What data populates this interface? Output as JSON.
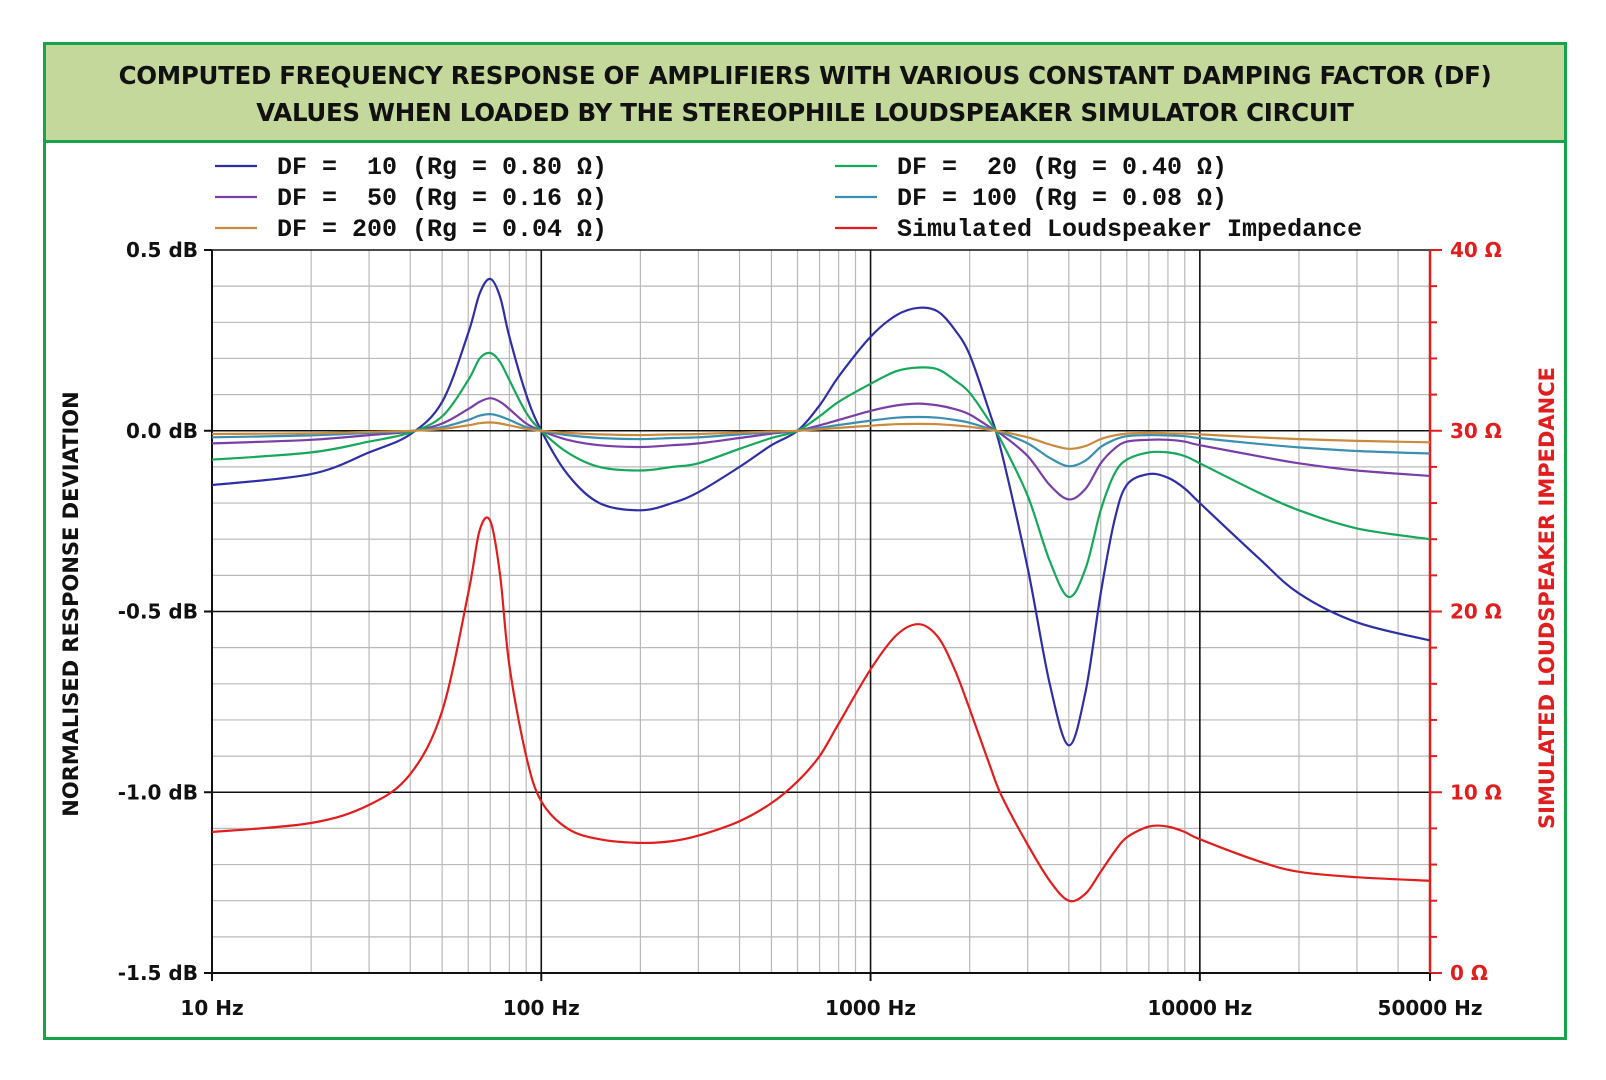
{
  "title": {
    "line1": "COMPUTED FREQUENCY RESPONSE OF AMPLIFIERS WITH VARIOUS CONSTANT DAMPING FACTOR (DF)",
    "line2": "VALUES WHEN LOADED BY THE STEREOPHILE LOUDSPEAKER SIMULATOR CIRCUIT"
  },
  "colors": {
    "frame": "#17a34a",
    "title_band": "#c4d89c",
    "impedance_axis": "#e11d1d"
  },
  "chart_data": {
    "type": "line",
    "x_scale": "log",
    "xlim": [
      10,
      50000
    ],
    "x_ticks": [
      10,
      100,
      1000,
      10000,
      50000
    ],
    "x_tick_labels": [
      "10 Hz",
      "100 Hz",
      "1000 Hz",
      "10000 Hz",
      "50000 Hz"
    ],
    "ylabel": "NORMALISED RESPONSE DEVIATION",
    "ylim": [
      -1.5,
      0.5
    ],
    "y_ticks": [
      0.5,
      0.0,
      -0.5,
      -1.0,
      -1.5
    ],
    "y_tick_labels": [
      "0.5 dB",
      "0.0 dB",
      "-0.5 dB",
      "-1.0 dB",
      "-1.5 dB"
    ],
    "y2label": "SIMULATED LOUDSPEAKER IMPEDANCE",
    "y2lim": [
      0,
      40
    ],
    "y2_ticks": [
      40,
      30,
      20,
      10,
      0
    ],
    "y2_tick_labels": [
      "40 Ω",
      "30 Ω",
      "20 Ω",
      "10 Ω",
      "0 Ω"
    ],
    "grid": true,
    "legend_position": "top",
    "series": [
      {
        "name": "DF =  10 (Rg = 0.80 Ω)",
        "color": "#2e2ea6",
        "axis": "left",
        "x": [
          10,
          20,
          30,
          40,
          50,
          60,
          65,
          70,
          75,
          80,
          90,
          100,
          120,
          150,
          200,
          250,
          300,
          400,
          500,
          600,
          700,
          800,
          1000,
          1200,
          1400,
          1600,
          1800,
          2000,
          2300,
          2500,
          3000,
          3500,
          4000,
          4500,
          5000,
          5500,
          6000,
          7000,
          8000,
          9000,
          10000,
          15000,
          20000,
          30000,
          50000
        ],
        "y": [
          -0.15,
          -0.12,
          -0.06,
          -0.01,
          0.08,
          0.27,
          0.38,
          0.42,
          0.37,
          0.26,
          0.1,
          0.0,
          -0.12,
          -0.2,
          -0.22,
          -0.2,
          -0.17,
          -0.1,
          -0.04,
          0.0,
          0.07,
          0.15,
          0.26,
          0.32,
          0.34,
          0.33,
          0.28,
          0.21,
          0.05,
          -0.06,
          -0.38,
          -0.7,
          -0.87,
          -0.72,
          -0.45,
          -0.25,
          -0.15,
          -0.12,
          -0.13,
          -0.16,
          -0.2,
          -0.35,
          -0.45,
          -0.53,
          -0.58
        ]
      },
      {
        "name": "DF =  20 (Rg = 0.40 Ω)",
        "color": "#16a85a",
        "axis": "left",
        "x": [
          10,
          20,
          30,
          40,
          50,
          60,
          65,
          70,
          75,
          80,
          90,
          100,
          120,
          150,
          200,
          250,
          300,
          400,
          500,
          600,
          700,
          800,
          1000,
          1200,
          1400,
          1600,
          1800,
          2000,
          2300,
          2500,
          3000,
          3500,
          4000,
          4500,
          5000,
          5500,
          6000,
          7000,
          8000,
          9000,
          10000,
          15000,
          20000,
          30000,
          50000
        ],
        "y": [
          -0.08,
          -0.06,
          -0.03,
          -0.005,
          0.04,
          0.14,
          0.2,
          0.215,
          0.19,
          0.14,
          0.05,
          0.0,
          -0.06,
          -0.1,
          -0.11,
          -0.1,
          -0.09,
          -0.05,
          -0.02,
          0.0,
          0.04,
          0.08,
          0.13,
          0.165,
          0.175,
          0.17,
          0.14,
          0.105,
          0.025,
          -0.03,
          -0.18,
          -0.36,
          -0.46,
          -0.38,
          -0.22,
          -0.12,
          -0.08,
          -0.06,
          -0.06,
          -0.07,
          -0.09,
          -0.17,
          -0.22,
          -0.27,
          -0.3
        ]
      },
      {
        "name": "DF =  50 (Rg = 0.16 Ω)",
        "color": "#7a3ea8",
        "axis": "left",
        "x": [
          10,
          20,
          30,
          40,
          50,
          60,
          65,
          70,
          75,
          80,
          90,
          100,
          120,
          150,
          200,
          250,
          300,
          400,
          500,
          600,
          700,
          800,
          1000,
          1200,
          1400,
          1600,
          1800,
          2000,
          2300,
          2500,
          3000,
          3500,
          4000,
          4500,
          5000,
          5500,
          6000,
          7000,
          8000,
          9000,
          10000,
          15000,
          20000,
          30000,
          50000
        ],
        "y": [
          -0.035,
          -0.025,
          -0.012,
          -0.002,
          0.02,
          0.06,
          0.08,
          0.09,
          0.08,
          0.06,
          0.02,
          0.0,
          -0.025,
          -0.04,
          -0.045,
          -0.04,
          -0.035,
          -0.02,
          -0.008,
          0.0,
          0.015,
          0.03,
          0.055,
          0.07,
          0.075,
          0.07,
          0.06,
          0.045,
          0.01,
          -0.01,
          -0.07,
          -0.15,
          -0.19,
          -0.16,
          -0.09,
          -0.05,
          -0.03,
          -0.025,
          -0.025,
          -0.03,
          -0.04,
          -0.07,
          -0.09,
          -0.11,
          -0.125
        ]
      },
      {
        "name": "DF = 100 (Rg = 0.08 Ω)",
        "color": "#3b8fb0",
        "axis": "left",
        "x": [
          10,
          20,
          30,
          40,
          50,
          60,
          65,
          70,
          75,
          80,
          90,
          100,
          120,
          150,
          200,
          250,
          300,
          400,
          500,
          600,
          700,
          800,
          1000,
          1200,
          1400,
          1600,
          1800,
          2000,
          2300,
          2500,
          3000,
          3500,
          4000,
          4500,
          5000,
          5500,
          6000,
          7000,
          8000,
          9000,
          10000,
          15000,
          20000,
          30000,
          50000
        ],
        "y": [
          -0.018,
          -0.013,
          -0.006,
          -0.001,
          0.01,
          0.03,
          0.042,
          0.046,
          0.04,
          0.03,
          0.01,
          0.0,
          -0.012,
          -0.02,
          -0.023,
          -0.02,
          -0.018,
          -0.01,
          -0.004,
          0.0,
          0.008,
          0.016,
          0.028,
          0.036,
          0.038,
          0.036,
          0.03,
          0.022,
          0.005,
          -0.005,
          -0.035,
          -0.075,
          -0.098,
          -0.082,
          -0.045,
          -0.025,
          -0.015,
          -0.012,
          -0.013,
          -0.015,
          -0.02,
          -0.036,
          -0.046,
          -0.056,
          -0.063
        ]
      },
      {
        "name": "DF = 200 (Rg = 0.04 Ω)",
        "color": "#c98a3c",
        "axis": "left",
        "x": [
          10,
          20,
          30,
          40,
          50,
          60,
          65,
          70,
          75,
          80,
          90,
          100,
          120,
          150,
          200,
          250,
          300,
          400,
          500,
          600,
          700,
          800,
          1000,
          1200,
          1400,
          1600,
          1800,
          2000,
          2300,
          2500,
          3000,
          3500,
          4000,
          4500,
          5000,
          5500,
          6000,
          7000,
          8000,
          9000,
          10000,
          15000,
          20000,
          30000,
          50000
        ],
        "y": [
          -0.009,
          -0.007,
          -0.003,
          -0.0005,
          0.005,
          0.015,
          0.021,
          0.023,
          0.02,
          0.015,
          0.005,
          0.0,
          -0.006,
          -0.01,
          -0.012,
          -0.01,
          -0.009,
          -0.005,
          -0.002,
          0.0,
          0.004,
          0.008,
          0.014,
          0.018,
          0.019,
          0.018,
          0.015,
          0.011,
          0.0025,
          -0.0025,
          -0.018,
          -0.038,
          -0.05,
          -0.042,
          -0.023,
          -0.013,
          -0.008,
          -0.006,
          -0.007,
          -0.008,
          -0.01,
          -0.018,
          -0.023,
          -0.028,
          -0.032
        ]
      },
      {
        "name": "Simulated Loudspeaker Impedance",
        "color": "#e11d1d",
        "axis": "right",
        "x": [
          10,
          20,
          30,
          40,
          50,
          60,
          65,
          70,
          75,
          80,
          90,
          100,
          120,
          150,
          200,
          250,
          300,
          400,
          500,
          600,
          700,
          800,
          1000,
          1200,
          1400,
          1600,
          1800,
          2000,
          2300,
          2500,
          3000,
          3500,
          4000,
          4500,
          5000,
          5500,
          6000,
          7000,
          8000,
          9000,
          10000,
          15000,
          20000,
          30000,
          50000
        ],
        "y": [
          7.8,
          8.3,
          9.3,
          11.0,
          14.5,
          21.0,
          24.5,
          25.0,
          22.0,
          17.0,
          12.0,
          9.5,
          8.0,
          7.4,
          7.2,
          7.3,
          7.6,
          8.4,
          9.4,
          10.6,
          12.0,
          13.8,
          16.8,
          18.7,
          19.3,
          18.6,
          16.8,
          14.6,
          11.5,
          9.8,
          7.1,
          5.1,
          4.0,
          4.4,
          5.6,
          6.7,
          7.5,
          8.1,
          8.1,
          7.8,
          7.4,
          6.2,
          5.6,
          5.3,
          5.1
        ]
      }
    ]
  }
}
